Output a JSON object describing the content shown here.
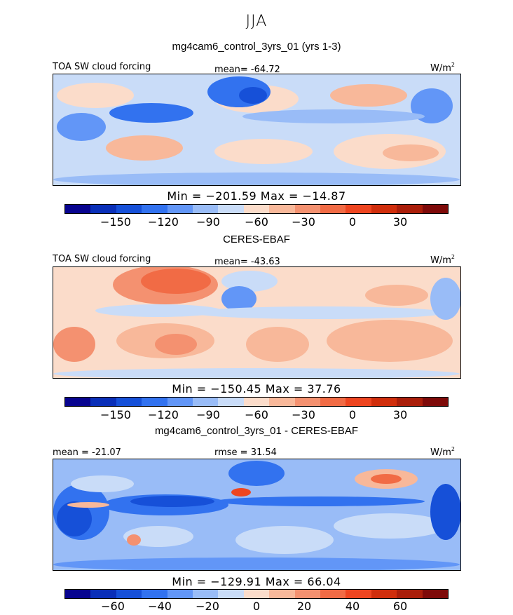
{
  "season": "JJA",
  "palette": [
    "#08048f",
    "#0a2fb8",
    "#1650d8",
    "#3272ef",
    "#6296f7",
    "#99bcf7",
    "#c9dcf8",
    "#fbdcca",
    "#f8b89a",
    "#f49170",
    "#f16b45",
    "#ee4520",
    "#d02e0c",
    "#aa1e0a",
    "#7e0a09"
  ],
  "panels": [
    {
      "title": "mg4cam6_control_3yrs_01 (yrs 1-3)",
      "left_label": "TOA SW cloud forcing",
      "center_label": "mean= -64.72",
      "units": "W/m",
      "units_exp": "2",
      "minmax": "Min = −201.59 Max = −14.87",
      "cbar_ticks": [
        "−150",
        "−120",
        "−90",
        "−60",
        "−30",
        "0",
        "30"
      ]
    },
    {
      "title": "CERES-EBAF",
      "left_label": "TOA SW cloud forcing",
      "center_label": "mean= -43.63",
      "units": "W/m",
      "units_exp": "2",
      "minmax": "Min = −150.45 Max =  37.76",
      "cbar_ticks": [
        "−150",
        "−120",
        "−90",
        "−60",
        "−30",
        "0",
        "30"
      ]
    },
    {
      "title": "mg4cam6_control_3yrs_01 - CERES-EBAF",
      "left_label": "mean = -21.07",
      "center_label": "rmse =  31.54",
      "units": "W/m",
      "units_exp": "2",
      "minmax": "Min = −129.91 Max =  66.04",
      "cbar_ticks": [
        "−60",
        "−40",
        "−20",
        "0",
        "20",
        "40",
        "60"
      ]
    }
  ],
  "chart_data": [
    {
      "type": "heatmap",
      "title": "mg4cam6_control_3yrs_01 (yrs 1-3)",
      "subtitle": "TOA SW cloud forcing",
      "units": "W/m2",
      "mean": -64.72,
      "min": -201.59,
      "max": -14.87,
      "colorbar_levels": [
        -180,
        -165,
        -150,
        -135,
        -120,
        -105,
        -90,
        -75,
        -60,
        -45,
        -30,
        -15,
        0,
        15,
        30,
        45
      ],
      "colorbar_ticks": [
        -150,
        -120,
        -90,
        -60,
        -30,
        0,
        30
      ]
    },
    {
      "type": "heatmap",
      "title": "CERES-EBAF",
      "subtitle": "TOA SW cloud forcing",
      "units": "W/m2",
      "mean": -43.63,
      "min": -150.45,
      "max": 37.76,
      "colorbar_levels": [
        -180,
        -165,
        -150,
        -135,
        -120,
        -105,
        -90,
        -75,
        -60,
        -45,
        -30,
        -15,
        0,
        15,
        30,
        45
      ],
      "colorbar_ticks": [
        -150,
        -120,
        -90,
        -60,
        -30,
        0,
        30
      ]
    },
    {
      "type": "heatmap",
      "title": "mg4cam6_control_3yrs_01 - CERES-EBAF",
      "units": "W/m2",
      "mean": -21.07,
      "rmse": 31.54,
      "min": -129.91,
      "max": 66.04,
      "colorbar_levels": [
        -80,
        -70,
        -60,
        -50,
        -40,
        -30,
        -20,
        -10,
        0,
        10,
        20,
        30,
        40,
        50,
        60,
        70,
        80
      ],
      "colorbar_ticks": [
        -60,
        -40,
        -20,
        0,
        20,
        40,
        60
      ]
    }
  ]
}
